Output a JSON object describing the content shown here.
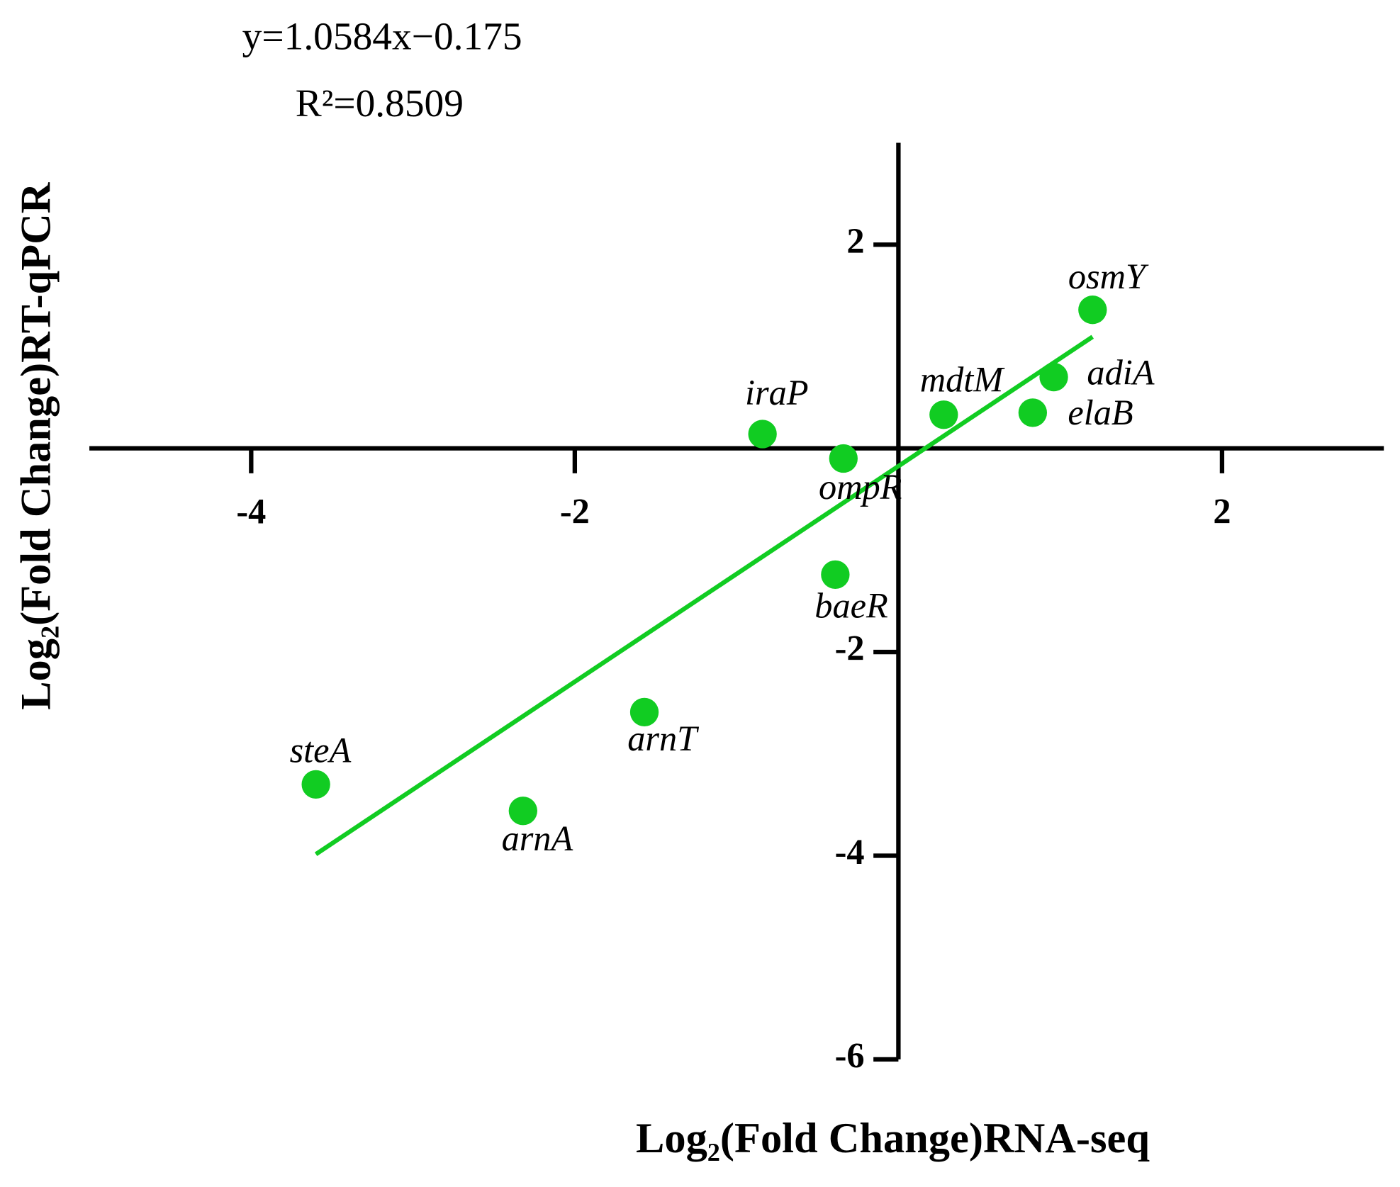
{
  "chart_data": {
    "type": "scatter",
    "annotations": [
      "y=1.0584x−0.175",
      "R²=0.8509"
    ],
    "xlabel": "Log₂(Fold Change)RNA-seq",
    "ylabel": "Log₂(Fold Change)RT-qPCR",
    "labels": [
      "steA",
      "arnA",
      "arnT",
      "baeR",
      "ompR",
      "iraP",
      "mdtM",
      "elaB",
      "adiA",
      "osmY"
    ],
    "x": [
      -3.6,
      -2.32,
      -1.57,
      -0.39,
      -0.34,
      -0.84,
      0.28,
      0.83,
      0.96,
      1.2
    ],
    "y": [
      -3.3,
      -3.56,
      -2.59,
      -1.24,
      -0.1,
      0.14,
      0.33,
      0.35,
      0.7,
      1.36
    ],
    "color": "#11cc22",
    "fit": {
      "slope": 1.0584,
      "intercept": -0.175
    },
    "xlim": [
      -5,
      3
    ],
    "ylim": [
      -6,
      3
    ],
    "xticks": [
      -4,
      -2,
      2
    ],
    "yticks": [
      2,
      -2,
      -4,
      -6
    ]
  }
}
